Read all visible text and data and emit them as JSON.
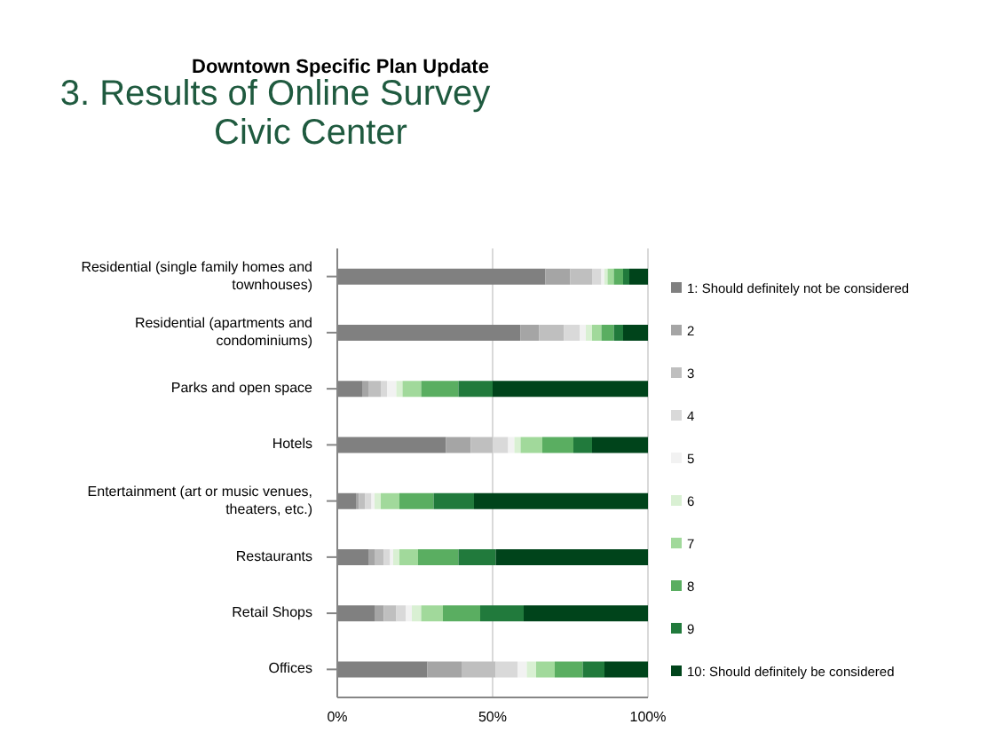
{
  "chart_data": {
    "type": "bar",
    "orientation": "horizontal",
    "stacked": true,
    "title": "3. Results of Online Survey",
    "subtitle": "Civic Center",
    "annotations": [
      "Downtown Specific Plan Update"
    ],
    "categories": [
      "Residential (single family homes and townhouses)",
      "Residential (apartments and condominiums)",
      "Parks and open space",
      "Hotels",
      "Entertainment (art or music venues, theaters, etc.)",
      "Restaurants",
      "Retail Shops",
      "Offices"
    ],
    "series": [
      {
        "name": "1: Should definitely not be considered",
        "color": "#808080",
        "values": [
          67,
          59,
          8,
          35,
          6,
          10,
          12,
          29
        ]
      },
      {
        "name": "2",
        "color": "#a5a5a5",
        "values": [
          8,
          6,
          2,
          8,
          1,
          2,
          3,
          11
        ]
      },
      {
        "name": "3",
        "color": "#bfbfbf",
        "values": [
          7,
          8,
          4,
          7,
          2,
          3,
          4,
          11
        ]
      },
      {
        "name": "4",
        "color": "#d9d9d9",
        "values": [
          3,
          5,
          2,
          5,
          2,
          2,
          3,
          7
        ]
      },
      {
        "name": "5",
        "color": "#f2f2f2",
        "values": [
          1,
          2,
          3,
          2,
          1,
          1,
          2,
          3
        ]
      },
      {
        "name": "6",
        "color": "#d9f0d3",
        "values": [
          1,
          2,
          2,
          2,
          2,
          2,
          3,
          3
        ]
      },
      {
        "name": "7",
        "color": "#a1d99b",
        "values": [
          2,
          3,
          6,
          7,
          6,
          6,
          7,
          6
        ]
      },
      {
        "name": "8",
        "color": "#5aae61",
        "values": [
          3,
          4,
          12,
          10,
          11,
          13,
          12,
          9
        ]
      },
      {
        "name": "9",
        "color": "#217a3c",
        "values": [
          2,
          3,
          11,
          6,
          13,
          12,
          14,
          7
        ]
      },
      {
        "name": "10: Should definitely be considered",
        "color": "#00441b",
        "values": [
          6,
          8,
          50,
          18,
          56,
          49,
          40,
          14
        ]
      }
    ],
    "xlim": [
      0,
      100
    ],
    "xticks": [
      {
        "value": 0,
        "label": "0%"
      },
      {
        "value": 50,
        "label": "50%"
      },
      {
        "value": 100,
        "label": "100%"
      }
    ],
    "grid": "x",
    "legend": "right"
  }
}
